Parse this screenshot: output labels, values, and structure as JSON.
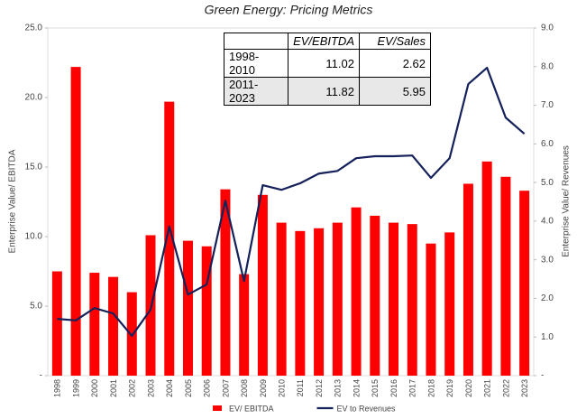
{
  "chart_data": {
    "type": "combo",
    "title": "Green Energy: Pricing Metrics",
    "y_label": "Enterprise Value/ EBITDA",
    "y2_label": "Enterprise Value/ Revenues",
    "categories": [
      "1998",
      "1999",
      "2000",
      "2001",
      "2002",
      "2003",
      "2004",
      "2005",
      "2006",
      "2007",
      "2008",
      "2009",
      "2010",
      "2011",
      "2012",
      "2013",
      "2014",
      "2015",
      "2016",
      "2017",
      "2018",
      "2019",
      "2020",
      "2021",
      "2022",
      "2023"
    ],
    "series": [
      {
        "name": "EV/ EBITDA",
        "type": "bar",
        "color": "#ff0000",
        "values": [
          7.5,
          22.2,
          7.4,
          7.1,
          6.0,
          10.1,
          19.7,
          9.7,
          9.3,
          13.4,
          7.3,
          13.0,
          11.0,
          10.4,
          10.6,
          11.0,
          12.1,
          11.5,
          11.0,
          10.9,
          9.5,
          10.3,
          13.8,
          15.4,
          14.3,
          13.3
        ]
      },
      {
        "name": "EV to Revenues",
        "type": "line",
        "axis": "y2",
        "color": "#14215a",
        "values": [
          1.47,
          1.43,
          1.75,
          1.61,
          1.03,
          1.71,
          3.86,
          2.1,
          2.36,
          4.53,
          2.45,
          4.93,
          4.81,
          4.98,
          5.23,
          5.3,
          5.63,
          5.68,
          5.68,
          5.7,
          5.12,
          5.63,
          7.55,
          7.97,
          6.68,
          6.26
        ]
      }
    ],
    "ylim": [
      0,
      25
    ],
    "yticks": [
      {
        "value": 0,
        "label": "-"
      },
      {
        "value": 5,
        "label": "5.0"
      },
      {
        "value": 10,
        "label": "10.0"
      },
      {
        "value": 15,
        "label": "15.0"
      },
      {
        "value": 20,
        "label": "20.0"
      },
      {
        "value": 25,
        "label": "25.0"
      }
    ],
    "y2lim": [
      0,
      9
    ],
    "y2ticks": [
      {
        "value": 0,
        "label": "-"
      },
      {
        "value": 1,
        "label": "1.0"
      },
      {
        "value": 2,
        "label": "2.0"
      },
      {
        "value": 3,
        "label": "3.0"
      },
      {
        "value": 4,
        "label": "4.0"
      },
      {
        "value": 5,
        "label": "5.0"
      },
      {
        "value": 6,
        "label": "6.0"
      },
      {
        "value": 7,
        "label": "7.0"
      },
      {
        "value": 8,
        "label": "8.0"
      },
      {
        "value": 9,
        "label": "9.0"
      }
    ],
    "grid": false,
    "legend": "bottom",
    "table": {
      "columns": [
        "EV/EBITDA",
        "EV/Sales"
      ],
      "rows": [
        {
          "label": "1998-2010",
          "values": [
            11.02,
            2.62
          ]
        },
        {
          "label": "2011-2023",
          "values": [
            11.82,
            5.95
          ]
        }
      ]
    }
  }
}
